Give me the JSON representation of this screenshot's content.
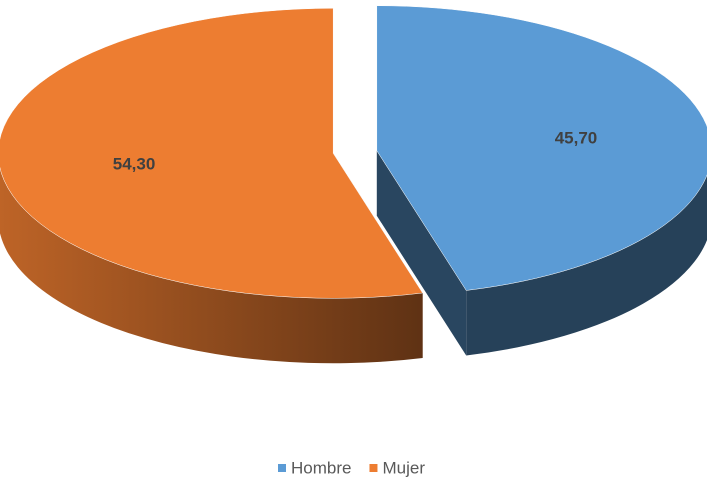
{
  "chart_data": {
    "type": "pie",
    "categories": [
      "Hombre",
      "Mujer"
    ],
    "values": [
      45.7,
      54.3
    ],
    "value_labels": [
      "45,70",
      "54,30"
    ],
    "colors": [
      "#5b9bd5",
      "#ed7d31"
    ],
    "legend": "bottom"
  }
}
